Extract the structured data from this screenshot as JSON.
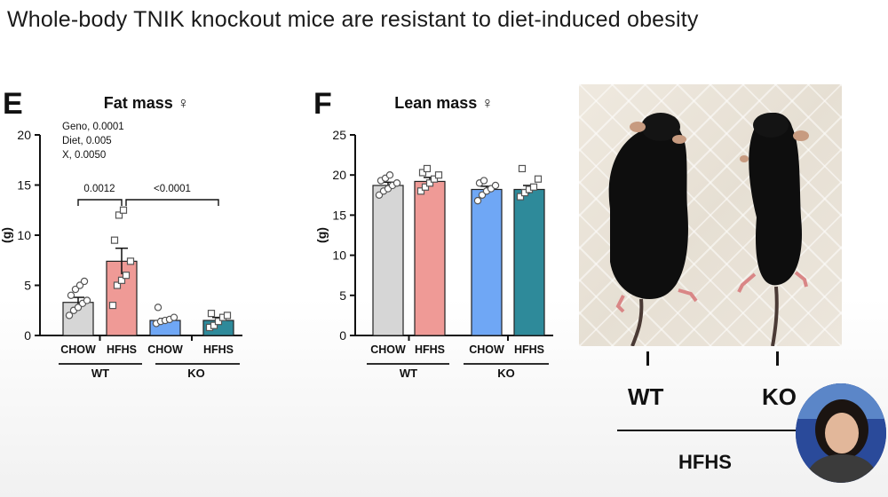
{
  "title": "Whole-body TNIK knockout mice are resistant to diet-induced obesity",
  "colors": {
    "chow": "#d6d6d6",
    "wt_hfhs": "#ef9a96",
    "ko_chow": "#6fa7f5",
    "ko_hfhs": "#2e8a9a",
    "axis": "#111111"
  },
  "chart_data": [
    {
      "type": "bar",
      "panel_label": "E",
      "title": "Fat mass ♀",
      "ylabel": "(g)",
      "ylim": [
        0,
        20
      ],
      "yticks": [
        "0",
        "5",
        "10",
        "15",
        "20"
      ],
      "categories": [
        "CHOW",
        "HFHS",
        "CHOW",
        "HFHS"
      ],
      "groups": [
        "WT",
        "KO"
      ],
      "values": [
        3.3,
        7.4,
        1.5,
        1.5
      ],
      "errors": [
        0.5,
        1.3,
        0.2,
        0.3
      ],
      "points": [
        [
          2.0,
          2.5,
          2.8,
          3.2,
          3.5,
          4.0,
          4.6,
          5.0,
          5.4
        ],
        [
          3.0,
          5.0,
          5.5,
          6.0,
          7.4,
          9.5,
          12.0,
          12.5
        ],
        [
          1.2,
          1.4,
          1.5,
          1.6,
          1.8,
          2.8
        ],
        [
          0.8,
          1.0,
          1.4,
          1.8,
          2.0,
          2.2
        ]
      ],
      "stats_text": [
        "Geno, 0.0001",
        "Diet, 0.005",
        "X, 0.0050"
      ],
      "comparisons": [
        "0.0012",
        "<0.0001"
      ]
    },
    {
      "type": "bar",
      "panel_label": "F",
      "title": "Lean mass ♀",
      "ylabel": "(g)",
      "ylim": [
        0,
        25
      ],
      "yticks": [
        "0",
        "5",
        "10",
        "15",
        "20",
        "25"
      ],
      "categories": [
        "CHOW",
        "HFHS",
        "CHOW",
        "HFHS"
      ],
      "groups": [
        "WT",
        "KO"
      ],
      "values": [
        18.7,
        19.2,
        18.2,
        18.2
      ],
      "errors": [
        0.4,
        0.5,
        0.4,
        0.5
      ],
      "points": [
        [
          17.5,
          18.0,
          18.3,
          18.7,
          19.0,
          19.3,
          19.6,
          20.0
        ],
        [
          18.0,
          18.5,
          19.0,
          19.5,
          20.0,
          20.3,
          20.8
        ],
        [
          16.8,
          17.5,
          18.0,
          18.3,
          18.7,
          19.0,
          19.3
        ],
        [
          17.3,
          17.8,
          18.2,
          18.5,
          19.5,
          20.8
        ]
      ]
    }
  ],
  "photo": {
    "labels": [
      "WT",
      "KO"
    ],
    "diet_label": "HFHS"
  }
}
